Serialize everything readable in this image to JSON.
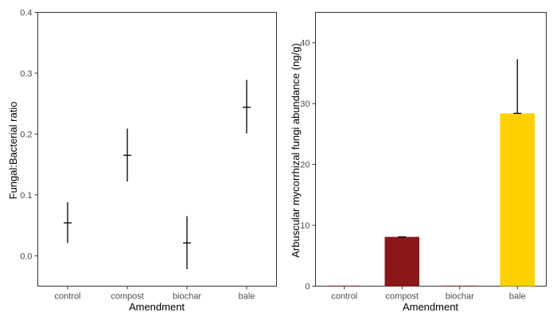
{
  "chart_data": [
    {
      "type": "scatter",
      "categories": [
        "control",
        "compost",
        "biochar",
        "bale"
      ],
      "series": [
        {
          "values": [
            0.054,
            0.165,
            0.021,
            0.244
          ],
          "error_low": [
            0.021,
            0.122,
            -0.022,
            0.201
          ],
          "error_high": [
            0.088,
            0.209,
            0.065,
            0.289
          ]
        }
      ],
      "xlabel": "Amendment",
      "ylabel": "Fungal:Bacterial ratio",
      "ylim": [
        -0.05,
        0.4
      ],
      "yticks": [
        0.0,
        0.1,
        0.2,
        0.3,
        0.4
      ],
      "ytick_labels": [
        "0.0",
        "0.1",
        "0.2",
        "0.3",
        "0.4"
      ],
      "grid": false,
      "point_style": "mean with vertical error bar",
      "color": "#000000"
    },
    {
      "type": "bar",
      "categories": [
        "control",
        "compost",
        "biochar",
        "bale"
      ],
      "values": [
        0,
        8.1,
        0,
        28.4
      ],
      "error_high": [
        0,
        8.1,
        0,
        37.3
      ],
      "colors": [
        "#8b0a0a",
        "#8b1818",
        "#8b0a0a",
        "#ffd000"
      ],
      "xlabel": "Amendment",
      "ylabel": "Arbuscular mycorrhizal fungi abundance (ng/g)",
      "ylim": [
        0,
        45
      ],
      "yticks": [
        0,
        10,
        20,
        30,
        40
      ],
      "ytick_labels": [
        "0",
        "10",
        "20",
        "30",
        "40"
      ],
      "grid": false
    }
  ]
}
